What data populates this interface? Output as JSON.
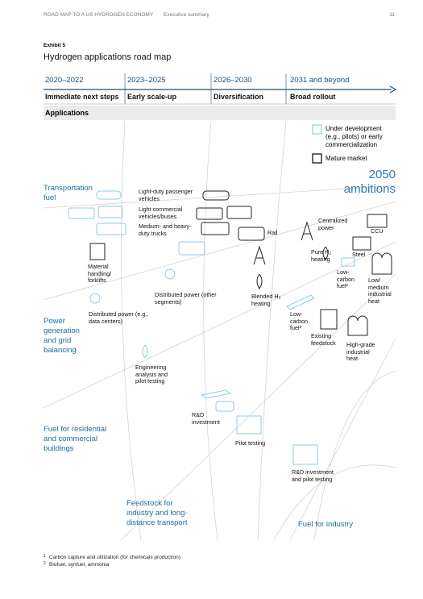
{
  "header": {
    "title": "ROAD MAP TO A US HYDROGEN ECONOMY",
    "section": "Executive summary",
    "page": "11"
  },
  "exhibit": {
    "label": "Exhibit 5",
    "title": "Hydrogen applications road map"
  },
  "timeline": [
    {
      "years": "2020–2022",
      "phase": "Immediate next steps"
    },
    {
      "years": "2023–2025",
      "phase": "Early scale-up"
    },
    {
      "years": "2026–2030",
      "phase": "Diversification"
    },
    {
      "years": "2031 and beyond",
      "phase": "Broad rollout"
    }
  ],
  "applications_label": "Applications",
  "legend": [
    "Under development (e.g., pilots) or early commercialization",
    "Mature market"
  ],
  "ambitions": "2050 ambitions",
  "segments": [
    "Transportation fuel",
    "Power generation and grid balancing",
    "Fuel for residential and commercial buildings",
    "Feedstock for industry and long-distance transport",
    "Fuel for industry"
  ],
  "nodes": [
    {
      "label": "Light-duty passenger vehicles"
    },
    {
      "label": "Light commercial vehicles/buses"
    },
    {
      "label": "Medium- and heavy-duty trucks"
    },
    {
      "label": "Rail"
    },
    {
      "label": "Centralized power"
    },
    {
      "label": "CCU"
    },
    {
      "label": "Pure H₂ heating"
    },
    {
      "label": "Steel"
    },
    {
      "label": "Material handling/ forklifts"
    },
    {
      "label": "Low-carbon fuel²"
    },
    {
      "label": "Low/ medium industrial heat"
    },
    {
      "label": "Distributed power (other segments)"
    },
    {
      "label": "Blended H₂ heating"
    },
    {
      "label": "Low-carbon fuel²"
    },
    {
      "label": "Distributed power (e.g., data centers)"
    },
    {
      "label": "Existing feedstock"
    },
    {
      "label": "High-grade industrial heat"
    },
    {
      "label": "Engineering analysis and pilot testing"
    },
    {
      "label": "R&D investment"
    },
    {
      "label": "Pilot testing"
    },
    {
      "label": "R&D investment and pilot testing"
    }
  ],
  "footnotes": [
    {
      "marker": "1",
      "text": "Carbon capture and utilization (for chemicals production)"
    },
    {
      "marker": "2",
      "text": "Biofuel, synfuel, ammonia"
    }
  ]
}
